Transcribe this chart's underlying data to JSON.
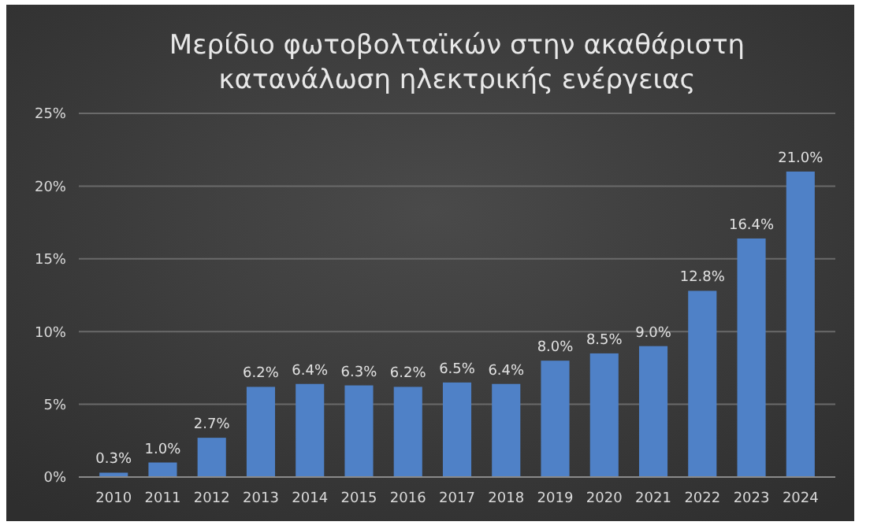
{
  "chart_data": {
    "type": "bar",
    "title": "Μερίδιο φωτοβολταϊκών στην ακαθάριστη\nκατανάλωση ηλεκτρικής ενέργειας",
    "categories": [
      "2010",
      "2011",
      "2012",
      "2013",
      "2014",
      "2015",
      "2016",
      "2017",
      "2018",
      "2019",
      "2020",
      "2021",
      "2022",
      "2023",
      "2024"
    ],
    "values": [
      0.3,
      1.0,
      2.7,
      6.2,
      6.4,
      6.3,
      6.2,
      6.5,
      6.4,
      8.0,
      8.5,
      9.0,
      12.8,
      16.4,
      21.0
    ],
    "value_labels": [
      "0.3%",
      "1.0%",
      "2.7%",
      "6.2%",
      "6.4%",
      "6.3%",
      "6.2%",
      "6.5%",
      "6.4%",
      "8.0%",
      "8.5%",
      "9.0%",
      "12.8%",
      "16.4%",
      "21.0%"
    ],
    "color": "#4f81c7",
    "ylim": [
      0,
      25
    ],
    "yticks": [
      {
        "value": 0,
        "label": "0%"
      },
      {
        "value": 5,
        "label": "5%"
      },
      {
        "value": 10,
        "label": "10%"
      },
      {
        "value": 15,
        "label": "15%"
      },
      {
        "value": 20,
        "label": "20%"
      },
      {
        "value": 25,
        "label": "25%"
      }
    ],
    "grid": "y"
  }
}
